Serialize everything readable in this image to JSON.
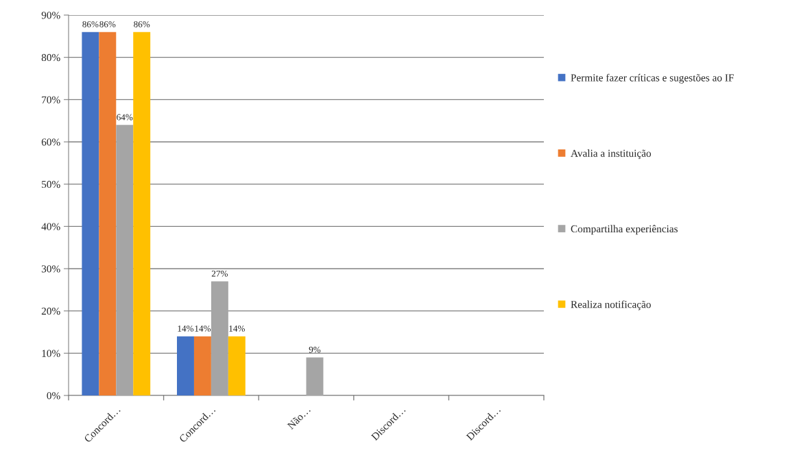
{
  "chart_data": {
    "type": "bar",
    "categories": [
      "Concord…",
      "Concord…",
      "Não…",
      "Discord…",
      "Discord…"
    ],
    "series": [
      {
        "name": "Permite fazer críticas e sugestões ao IF",
        "color": "#4472c4",
        "values": [
          86,
          14,
          null,
          null,
          null
        ],
        "value_labels": [
          "86%",
          "14%",
          null,
          null,
          null
        ]
      },
      {
        "name": "Avalia a instituição",
        "color": "#ed7d31",
        "values": [
          86,
          14,
          null,
          null,
          null
        ],
        "value_labels": [
          "86%",
          "14%",
          null,
          null,
          null
        ]
      },
      {
        "name": "Compartilha experiências",
        "color": "#a5a5a5",
        "values": [
          64,
          27,
          9,
          null,
          null
        ],
        "value_labels": [
          "64%",
          "27%",
          "9%",
          null,
          null
        ]
      },
      {
        "name": "Realiza notificação",
        "color": "#ffc000",
        "values": [
          86,
          14,
          null,
          null,
          null
        ],
        "value_labels": [
          "86%",
          "14%",
          null,
          null,
          null
        ]
      }
    ],
    "ylim": [
      0,
      90
    ],
    "yticks": [
      {
        "value": 0,
        "label": "0%"
      },
      {
        "value": 10,
        "label": "10%"
      },
      {
        "value": 20,
        "label": "20%"
      },
      {
        "value": 30,
        "label": "30%"
      },
      {
        "value": 40,
        "label": "40%"
      },
      {
        "value": 50,
        "label": "50%"
      },
      {
        "value": 60,
        "label": "60%"
      },
      {
        "value": 70,
        "label": "70%"
      },
      {
        "value": 80,
        "label": "80%"
      },
      {
        "value": 90,
        "label": "90%"
      }
    ],
    "grid": "y",
    "legend": "right"
  }
}
